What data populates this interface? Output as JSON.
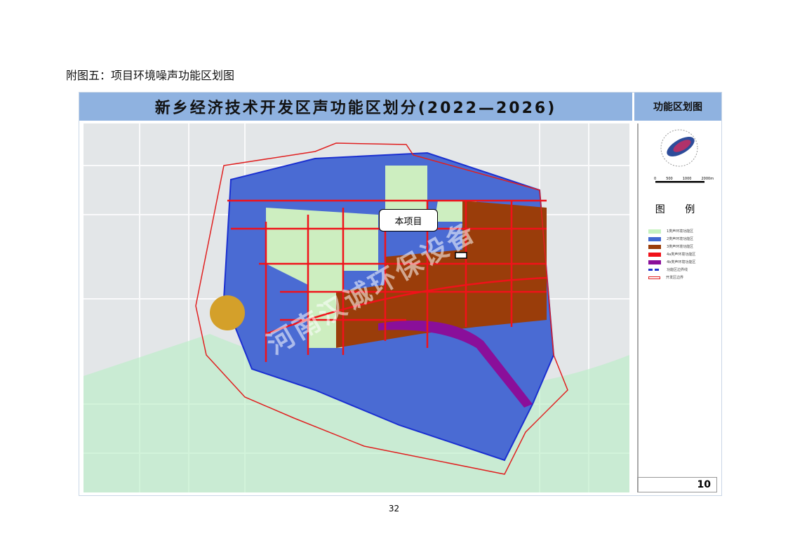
{
  "caption": "附图五：项目环境噪声功能区划图",
  "map_title": "新乡经济技术开发区声功能区划分(2022—2026)",
  "side_title": "功能区划图",
  "scale_labels": [
    "0",
    "500",
    "1000",
    "2000m"
  ],
  "legend": {
    "title": "图 例",
    "items": [
      {
        "label": "1类声环境功能区",
        "color": "#c6f2c0"
      },
      {
        "label": "2类声环境功能区",
        "color": "#4169d1"
      },
      {
        "label": "3类声环境功能区",
        "color": "#9a3d0a"
      },
      {
        "label": "4a类声环境功能区",
        "color": "#f0121a"
      },
      {
        "label": "4b类声环境功能区",
        "color": "#8a0f9a"
      },
      {
        "label": "功能区边界线",
        "color": "#2233cc"
      },
      {
        "label": "开发区边界",
        "color": "#e02020"
      }
    ]
  },
  "callout": "本项目",
  "watermark": "河南汉诚环保设备",
  "sheet_number": "10",
  "page_number": "32"
}
